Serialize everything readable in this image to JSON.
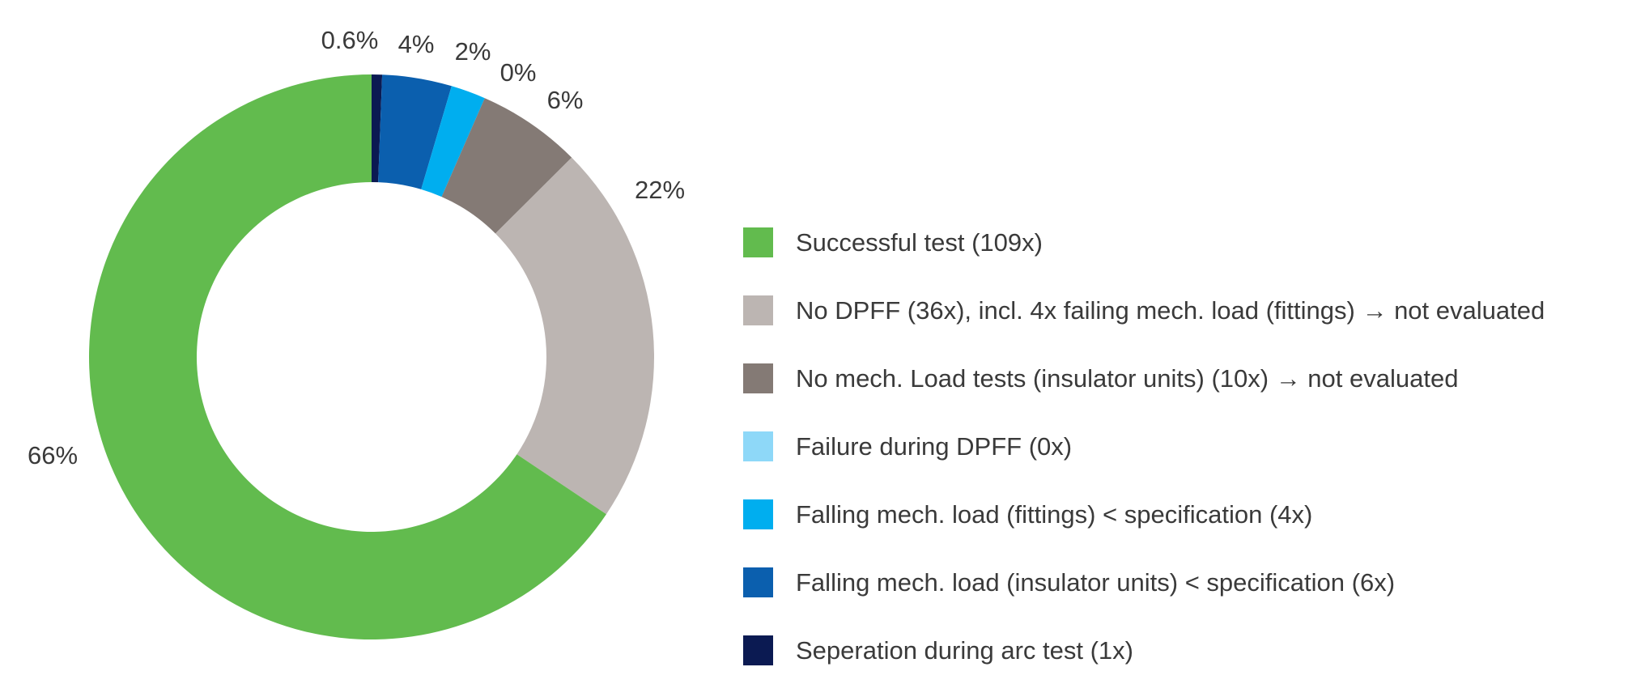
{
  "chart_data": {
    "type": "pie",
    "donut": true,
    "start_angle_deg": 0,
    "direction": "clockwise",
    "legend_position": "right",
    "slices": [
      {
        "key": "seperation",
        "value": 0.6,
        "label": "0.6%",
        "legend": "Seperation during arc test (1x)",
        "color": "#0b1a52"
      },
      {
        "key": "insulator_units",
        "value": 4,
        "label": "4%",
        "legend": "Falling mech. load (insulator units) < specification (6x)",
        "color": "#0b5fae"
      },
      {
        "key": "fittings",
        "value": 2,
        "label": "2%",
        "legend": "Falling mech. load (fittings) < specification (4x)",
        "color": "#00aeef"
      },
      {
        "key": "failure_dpff",
        "value": 0,
        "label": "0%",
        "legend": "Failure during DPFF (0x)",
        "color": "#8ed8f8"
      },
      {
        "key": "no_mech",
        "value": 6,
        "label": "6%",
        "legend": "No mech. Load tests (insulator units) (10x) → not evaluated",
        "color": "#847a75"
      },
      {
        "key": "no_dpff",
        "value": 22,
        "label": "22%",
        "legend": "No DPFF (36x), incl. 4x failing mech. load (fittings) → not evaluated",
        "color": "#bcb5b2"
      },
      {
        "key": "successful",
        "value": 66,
        "label": "66%",
        "legend": "Successful test (109x)",
        "color": "#62bb4e"
      }
    ],
    "legend_order": [
      "successful",
      "no_dpff",
      "no_mech",
      "failure_dpff",
      "fittings",
      "insulator_units",
      "seperation"
    ]
  }
}
